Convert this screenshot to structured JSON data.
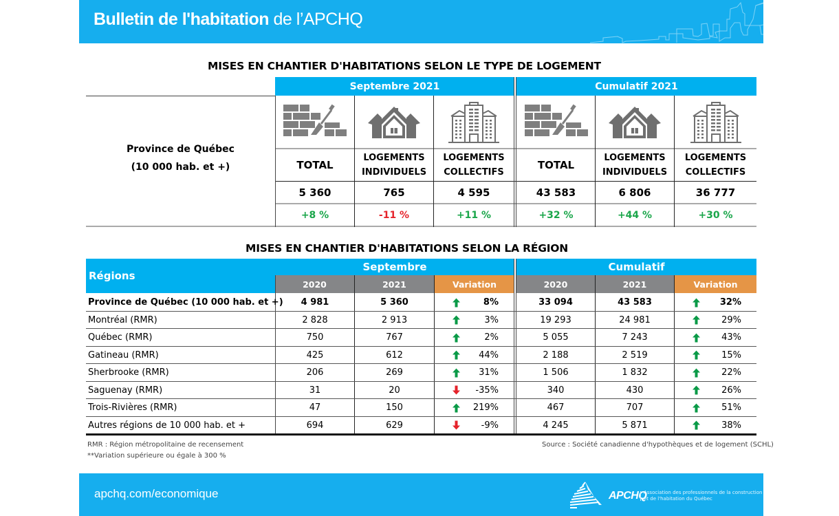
{
  "header": {
    "title_bold": "Bulletin de l'habitation",
    "title_light": "de l’APCHQ",
    "band_color": "#16aeee"
  },
  "table1": {
    "title": "MISES EN CHANTIER D'HABITATIONS SELON LE TYPE DE LOGEMENT",
    "row_label_line1": "Province de Québec",
    "row_label_line2": "(10 000 hab. et +)",
    "groups": [
      {
        "label": "Septembre 2021",
        "columns": [
          {
            "icon": "brick-wall-trowel-icon",
            "head_line1": "TOTAL",
            "head_line2": "",
            "value": "5 360",
            "change": "+8 %",
            "trend": "up"
          },
          {
            "icon": "house-icon",
            "head_line1": "LOGEMENTS",
            "head_line2": "INDIVIDUELS",
            "value": "765",
            "change": "-11 %",
            "trend": "down"
          },
          {
            "icon": "apartment-buildings-icon",
            "head_line1": "LOGEMENTS",
            "head_line2": "COLLECTIFS",
            "value": "4 595",
            "change": "+11 %",
            "trend": "up"
          }
        ]
      },
      {
        "label": "Cumulatif 2021",
        "columns": [
          {
            "icon": "brick-wall-trowel-icon",
            "head_line1": "TOTAL",
            "head_line2": "",
            "value": "43 583",
            "change": "+32 %",
            "trend": "up"
          },
          {
            "icon": "house-icon",
            "head_line1": "LOGEMENTS",
            "head_line2": "INDIVIDUELS",
            "value": "6 806",
            "change": "+44 %",
            "trend": "up"
          },
          {
            "icon": "apartment-buildings-icon",
            "head_line1": "LOGEMENTS",
            "head_line2": "COLLECTIFS",
            "value": "36 777",
            "change": "+30 %",
            "trend": "up"
          }
        ]
      }
    ]
  },
  "table2": {
    "title": "MISES EN CHANTIER D'HABITATIONS SELON LA RÉGION",
    "regions_label": "Régions",
    "group_sept": "Septembre",
    "group_cumul": "Cumulatif",
    "col_2020": "2020",
    "col_2021": "2021",
    "col_var": "Variation",
    "rows": [
      {
        "name": "Province de Québec (10 000 hab. et +)",
        "bold": true,
        "s2020": "4 981",
        "s2021": "5 360",
        "svar": "8%",
        "strend": "up",
        "c2020": "33 094",
        "c2021": "43 583",
        "cvar": "32%",
        "ctrend": "up"
      },
      {
        "name": "Montréal (RMR)",
        "bold": false,
        "s2020": "2 828",
        "s2021": "2 913",
        "svar": "3%",
        "strend": "up",
        "c2020": "19 293",
        "c2021": "24 981",
        "cvar": "29%",
        "ctrend": "up"
      },
      {
        "name": "Québec (RMR)",
        "bold": false,
        "s2020": "750",
        "s2021": "767",
        "svar": "2%",
        "strend": "up",
        "c2020": "5 055",
        "c2021": "7 243",
        "cvar": "43%",
        "ctrend": "up"
      },
      {
        "name": "Gatineau (RMR)",
        "bold": false,
        "s2020": "425",
        "s2021": "612",
        "svar": "44%",
        "strend": "up",
        "c2020": "2 188",
        "c2021": "2 519",
        "cvar": "15%",
        "ctrend": "up"
      },
      {
        "name": "Sherbrooke (RMR)",
        "bold": false,
        "s2020": "206",
        "s2021": "269",
        "svar": "31%",
        "strend": "up",
        "c2020": "1 506",
        "c2021": "1 832",
        "cvar": "22%",
        "ctrend": "up"
      },
      {
        "name": "Saguenay (RMR)",
        "bold": false,
        "s2020": "31",
        "s2021": "20",
        "svar": "-35%",
        "strend": "down",
        "c2020": "340",
        "c2021": "430",
        "cvar": "26%",
        "ctrend": "up"
      },
      {
        "name": "Trois-Rivières (RMR)",
        "bold": false,
        "s2020": "47",
        "s2021": "150",
        "svar": "219%",
        "strend": "up",
        "c2020": "467",
        "c2021": "707",
        "cvar": "51%",
        "ctrend": "up"
      },
      {
        "name": "Autres régions de 10 000  hab. et +",
        "bold": false,
        "s2020": "694",
        "s2021": "629",
        "svar": "-9%",
        "strend": "down",
        "c2020": "4 245",
        "c2021": "5 871",
        "cvar": "38%",
        "ctrend": "up"
      }
    ]
  },
  "notes": {
    "rmr": "RMR : Région métropolitaine de recensement",
    "variation": "**Variation supérieure ou égale à 300 %",
    "source": "Source : Société canadienne d'hypothèques et de logement (SCHL)"
  },
  "footer": {
    "url": "apchq.com/economique",
    "logo_text": "APCHQ",
    "logo_sub_line1": "Association des professionnels de la construction",
    "logo_sub_line2": "et de l'habitation du Québec"
  },
  "colors": {
    "brand_blue": "#00b0ef",
    "header_gray": "#858688",
    "variation_orange": "#e59546",
    "positive_green": "#1aa64a",
    "negative_red": "#e5232b",
    "arrow_up": "#0a9a47",
    "arrow_down": "#e5232b"
  }
}
